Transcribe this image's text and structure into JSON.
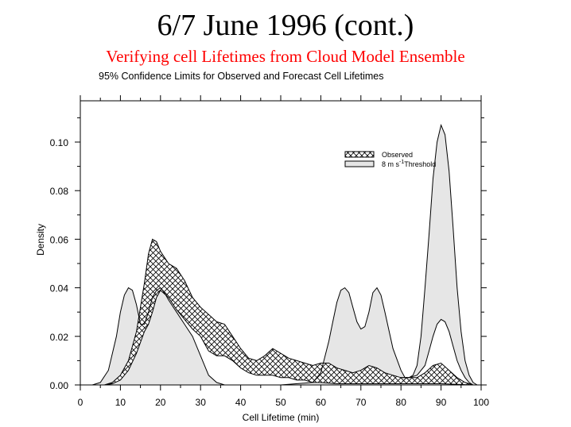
{
  "header": {
    "title": "6/7 June 1996 (cont.)",
    "subtitle": "Verifying cell Lifetimes from Cloud Model Ensemble",
    "caption": "95% Confidence Limits for Observed and Forecast Cell Lifetimes"
  },
  "colors": {
    "subtitle": "#ff0000",
    "threshold_fill": "#e6e6e6",
    "line": "#000000"
  },
  "legend": {
    "observed": "Observed",
    "threshold_prefix": "8 m s",
    "threshold_sup": "-1",
    "threshold_suffix": "Threshold"
  },
  "chart_data": {
    "type": "area",
    "title": "95% Confidence Limits for Observed and Forecast Cell Lifetimes",
    "xlabel": "Cell Lifetime (min)",
    "ylabel": "Density",
    "xlim": [
      0,
      100
    ],
    "ylim": [
      0,
      0.117
    ],
    "x_ticks": [
      "0",
      "10",
      "20",
      "30",
      "40",
      "50",
      "60",
      "70",
      "80",
      "90",
      "100"
    ],
    "y_ticks": [
      "0.00",
      "0.02",
      "0.04",
      "0.06",
      "0.08",
      "0.10"
    ],
    "grid": false,
    "legend_position": "upper right",
    "series": [
      {
        "name": "Observed",
        "style": "crosshatch band (95% confidence limits)",
        "upper": {
          "x": [
            6,
            8,
            10,
            12,
            14,
            16,
            17,
            18,
            19,
            20,
            22,
            24,
            26,
            28,
            30,
            32,
            34,
            36,
            38,
            40,
            42,
            44,
            46,
            48,
            50,
            52,
            54,
            56,
            58,
            60,
            62,
            64,
            66,
            68,
            70,
            72,
            74,
            76,
            78,
            80,
            82,
            84,
            86,
            88,
            90,
            92,
            94,
            96,
            98
          ],
          "y": [
            0.0,
            0.001,
            0.004,
            0.01,
            0.022,
            0.042,
            0.054,
            0.06,
            0.059,
            0.055,
            0.05,
            0.048,
            0.043,
            0.036,
            0.032,
            0.029,
            0.026,
            0.025,
            0.02,
            0.015,
            0.011,
            0.01,
            0.012,
            0.015,
            0.013,
            0.011,
            0.01,
            0.009,
            0.008,
            0.009,
            0.009,
            0.007,
            0.006,
            0.005,
            0.006,
            0.008,
            0.007,
            0.005,
            0.004,
            0.003,
            0.003,
            0.003,
            0.005,
            0.008,
            0.009,
            0.006,
            0.003,
            0.001,
            0.0
          ]
        },
        "lower": {
          "x": [
            6,
            8,
            10,
            12,
            14,
            16,
            17,
            18,
            19,
            20,
            22,
            24,
            26,
            28,
            30,
            32,
            34,
            36,
            38,
            40,
            42,
            44,
            46,
            48,
            50,
            52,
            54,
            56,
            58,
            60,
            64,
            70,
            80,
            90,
            98
          ],
          "y": [
            0.0,
            0.0005,
            0.002,
            0.006,
            0.013,
            0.022,
            0.025,
            0.03,
            0.036,
            0.039,
            0.036,
            0.031,
            0.027,
            0.023,
            0.02,
            0.014,
            0.012,
            0.012,
            0.01,
            0.007,
            0.005,
            0.004,
            0.004,
            0.004,
            0.003,
            0.003,
            0.002,
            0.002,
            0.001,
            0.001,
            0.0005,
            0.0005,
            0.0005,
            0.0005,
            0.0
          ]
        }
      },
      {
        "name": "8 m s-1 Threshold",
        "style": "light grey filled band (95% confidence limits)",
        "upper": {
          "x": [
            3,
            5,
            7,
            9,
            10,
            11,
            12,
            13,
            14,
            15,
            16,
            17,
            18,
            19,
            20,
            21,
            22,
            24,
            26,
            28,
            30,
            32,
            34,
            36,
            40,
            50,
            58,
            60,
            62,
            63,
            64,
            65,
            66,
            67,
            68,
            69,
            70,
            71,
            72,
            73,
            74,
            75,
            76,
            78,
            80,
            81,
            82,
            83,
            84,
            85,
            86,
            87,
            88,
            89,
            90,
            91,
            92,
            93,
            94,
            95,
            96,
            97,
            98,
            99
          ],
          "y": [
            0.0,
            0.001,
            0.006,
            0.02,
            0.03,
            0.037,
            0.04,
            0.039,
            0.033,
            0.025,
            0.025,
            0.03,
            0.036,
            0.039,
            0.04,
            0.038,
            0.035,
            0.03,
            0.025,
            0.02,
            0.012,
            0.004,
            0.001,
            0.0,
            0.0,
            0.0,
            0.001,
            0.005,
            0.018,
            0.026,
            0.034,
            0.039,
            0.04,
            0.038,
            0.032,
            0.026,
            0.023,
            0.024,
            0.03,
            0.038,
            0.04,
            0.037,
            0.03,
            0.015,
            0.006,
            0.003,
            0.003,
            0.004,
            0.008,
            0.02,
            0.04,
            0.062,
            0.085,
            0.1,
            0.107,
            0.103,
            0.088,
            0.065,
            0.04,
            0.022,
            0.01,
            0.004,
            0.001,
            0.0
          ]
        },
        "lower": {
          "x": [
            80,
            82,
            84,
            86,
            87,
            88,
            89,
            90,
            91,
            92,
            93,
            94,
            95,
            96,
            97,
            98,
            99
          ],
          "y": [
            0.003,
            0.003,
            0.004,
            0.008,
            0.014,
            0.02,
            0.025,
            0.027,
            0.026,
            0.022,
            0.016,
            0.01,
            0.006,
            0.003,
            0.001,
            0.0,
            0.0
          ]
        }
      }
    ]
  }
}
